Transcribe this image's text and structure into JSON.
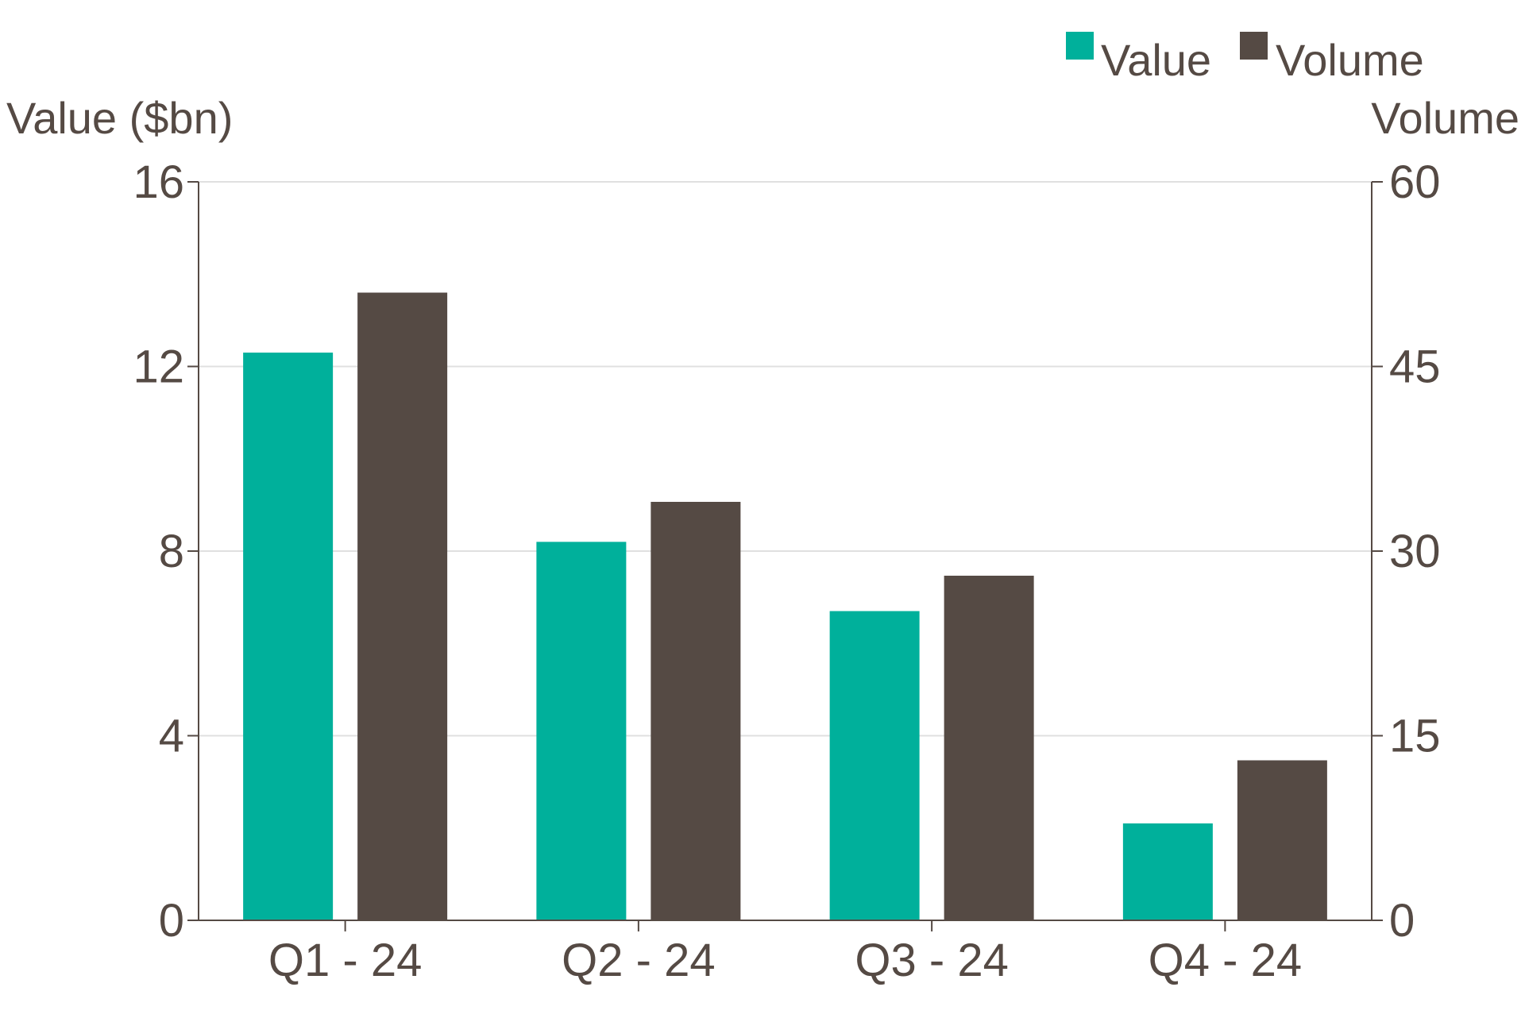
{
  "chart_data": {
    "type": "bar",
    "categories": [
      "Q1 - 24",
      "Q2 - 24",
      "Q3 - 24",
      "Q4 - 24"
    ],
    "series": [
      {
        "name": "Value",
        "axis": "left",
        "values": [
          12.3,
          8.2,
          6.7,
          2.1
        ],
        "color": "#00b09b"
      },
      {
        "name": "Volume",
        "axis": "right",
        "values": [
          51,
          34,
          28,
          13
        ],
        "color": "#554a44"
      }
    ],
    "ylabel": "Value ($bn)",
    "y2label": "Volume",
    "ylim": [
      0,
      16
    ],
    "y2lim": [
      0,
      60
    ],
    "yticks": [
      "0",
      "4",
      "8",
      "12",
      "16"
    ],
    "y2ticks": [
      "0",
      "15",
      "30",
      "45",
      "60"
    ],
    "grid": true,
    "legend_position": "top-right",
    "colors": {
      "text": "#554a44",
      "grid": "#e0e0e0",
      "axis": "#554a44"
    }
  }
}
